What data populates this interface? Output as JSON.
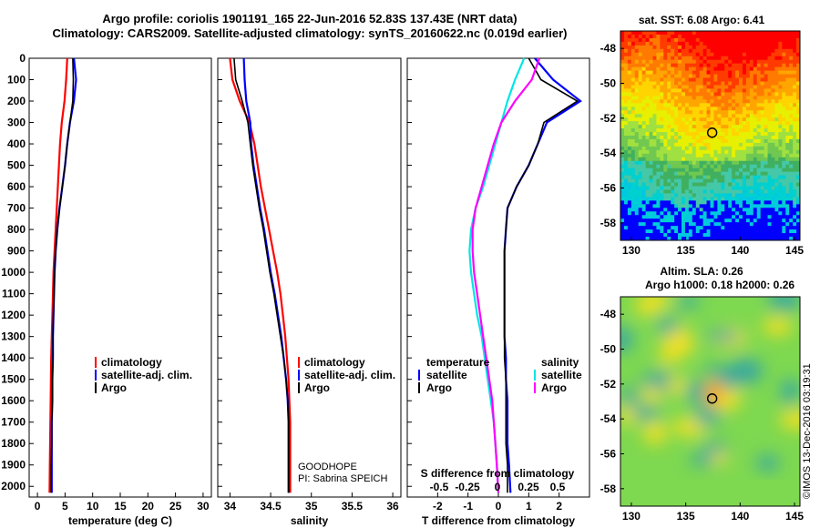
{
  "header": {
    "line1": "Argo profile: coriolis 1901191_165 22-Jun-2016 52.83S 137.43E (NRT data)",
    "line2": "Climatology: CARS2009. Satellite-adjusted climatology: synTS_20160622.nc (0.019d earlier)"
  },
  "colors": {
    "climatology": "#ff0000",
    "satellite": "#0000ff",
    "argo": "#000000",
    "s_satellite": "#00e6e6",
    "s_climatology": "#ff00ff"
  },
  "chart_data": [
    {
      "type": "line",
      "panel": "temperature",
      "xlabel": "temperature (deg C)",
      "ylabel": "",
      "xlim": [
        -1.5,
        31.5
      ],
      "ylim": [
        2050,
        0
      ],
      "xticks": [
        0,
        5,
        10,
        15,
        20,
        25,
        30
      ],
      "yticks": [
        0,
        100,
        200,
        300,
        400,
        500,
        600,
        700,
        800,
        900,
        1000,
        1100,
        1200,
        1300,
        1400,
        1500,
        1600,
        1700,
        1800,
        1900,
        2000
      ],
      "legend": [
        "climatology",
        "satellite-adj. clim.",
        "Argo"
      ],
      "series": [
        {
          "name": "climatology",
          "color": "climatology",
          "x": [
            5.4,
            5.2,
            4.9,
            4.4,
            4.1,
            3.9,
            3.7,
            3.5,
            3.3,
            3.1,
            2.9,
            2.8,
            2.7,
            2.6,
            2.5,
            2.45,
            2.4,
            2.35,
            2.3,
            2.25,
            2.2
          ],
          "y": [
            0,
            100,
            200,
            300,
            400,
            500,
            600,
            700,
            800,
            900,
            1000,
            1100,
            1200,
            1300,
            1400,
            1500,
            1600,
            1700,
            1800,
            1900,
            2030
          ]
        },
        {
          "name": "satellite-adj. clim.",
          "color": "satellite",
          "x": [
            6.6,
            7.0,
            6.6,
            5.9,
            5.4,
            5.0,
            4.5,
            4.0,
            3.6,
            3.3,
            3.1,
            3.0,
            2.9,
            2.8,
            2.8,
            2.7,
            2.7,
            2.6,
            2.6,
            2.6,
            2.6
          ],
          "y": [
            0,
            100,
            200,
            300,
            400,
            500,
            600,
            700,
            800,
            900,
            1000,
            1100,
            1200,
            1300,
            1400,
            1500,
            1600,
            1700,
            1800,
            1900,
            2030
          ]
        },
        {
          "name": "Argo",
          "color": "argo",
          "x": [
            6.4,
            6.5,
            6.4,
            5.9,
            5.4,
            5.0,
            4.5,
            4.0,
            3.6,
            3.3,
            3.1,
            3.0,
            2.9,
            2.8,
            2.8,
            2.7,
            2.7,
            2.6,
            2.6,
            2.5,
            2.5
          ],
          "y": [
            0,
            100,
            200,
            300,
            400,
            500,
            600,
            700,
            800,
            900,
            1000,
            1100,
            1200,
            1300,
            1400,
            1500,
            1600,
            1700,
            1800,
            1900,
            2030
          ]
        }
      ]
    },
    {
      "type": "line",
      "panel": "salinity",
      "xlabel": "salinity",
      "ylabel": "",
      "xlim": [
        33.85,
        36.1
      ],
      "ylim": [
        2050,
        0
      ],
      "xticks": [
        34,
        34.5,
        35,
        35.5,
        36
      ],
      "xticklabels": [
        "34",
        "34.5",
        "35",
        "35.5",
        "36"
      ],
      "legend": [
        "climatology",
        "satellite-adj. clim.",
        "Argo"
      ],
      "annotations": [
        "GOODHOPE",
        "PI: Sabrina SPEICH"
      ],
      "series": [
        {
          "name": "climatology",
          "color": "climatology",
          "x": [
            34.0,
            34.03,
            34.12,
            34.24,
            34.3,
            34.34,
            34.38,
            34.43,
            34.48,
            34.53,
            34.58,
            34.62,
            34.65,
            34.68,
            34.7,
            34.72,
            34.73,
            34.74,
            34.74,
            34.74,
            34.74
          ],
          "y": [
            0,
            100,
            200,
            300,
            400,
            500,
            600,
            700,
            800,
            900,
            1000,
            1100,
            1200,
            1300,
            1400,
            1500,
            1600,
            1700,
            1800,
            1900,
            2030
          ]
        },
        {
          "name": "satellite-adj. clim.",
          "color": "satellite",
          "x": [
            34.17,
            34.18,
            34.2,
            34.25,
            34.26,
            34.29,
            34.33,
            34.37,
            34.42,
            34.46,
            34.5,
            34.55,
            34.59,
            34.63,
            34.66,
            34.69,
            34.71,
            34.72,
            34.72,
            34.72,
            34.72
          ],
          "y": [
            0,
            100,
            200,
            300,
            400,
            500,
            600,
            700,
            800,
            900,
            1000,
            1100,
            1200,
            1300,
            1400,
            1500,
            1600,
            1700,
            1800,
            1900,
            2030
          ]
        },
        {
          "name": "Argo",
          "color": "argo",
          "x": [
            34.05,
            34.07,
            34.15,
            34.22,
            34.25,
            34.28,
            34.32,
            34.36,
            34.41,
            34.45,
            34.49,
            34.54,
            34.58,
            34.62,
            34.66,
            34.69,
            34.71,
            34.72,
            34.72,
            34.72,
            34.72
          ],
          "y": [
            0,
            100,
            200,
            300,
            400,
            500,
            600,
            700,
            800,
            900,
            1000,
            1100,
            1200,
            1300,
            1400,
            1500,
            1600,
            1700,
            1800,
            1900,
            2030
          ]
        }
      ]
    },
    {
      "type": "line",
      "panel": "difference",
      "xlabel": "T difference from climatology",
      "ylabel": "",
      "xlim": [
        -3,
        3
      ],
      "ylim": [
        2050,
        0
      ],
      "xticks": [
        -2,
        -1,
        0,
        1,
        2
      ],
      "xticklabels": [
        "-2",
        "-1",
        "0",
        "1",
        "2"
      ],
      "secondary_axis": {
        "label": "S difference from climatology",
        "ticklabels": [
          "-0.5",
          "-0.25",
          "0",
          "0.25",
          "0.5"
        ]
      },
      "legend_left": {
        "title": "temperature",
        "entries": [
          "satellite",
          "Argo"
        ]
      },
      "legend_right": {
        "title": "salinity",
        "entries": [
          "satellite",
          "Argo"
        ]
      },
      "series": [
        {
          "name": "temperature satellite",
          "color": "satellite",
          "x": [
            1.2,
            1.8,
            2.7,
            1.6,
            1.3,
            1.0,
            0.6,
            0.3,
            0.25,
            0.2,
            0.2,
            0.2,
            0.2,
            0.2,
            0.25,
            0.25,
            0.3,
            0.3,
            0.3,
            0.35,
            0.4
          ],
          "y": [
            0,
            100,
            200,
            300,
            400,
            500,
            600,
            700,
            800,
            900,
            1000,
            1100,
            1200,
            1300,
            1400,
            1500,
            1600,
            1700,
            1800,
            1900,
            2030
          ]
        },
        {
          "name": "temperature Argo",
          "color": "argo",
          "x": [
            1.0,
            1.4,
            2.6,
            1.5,
            1.3,
            1.0,
            0.6,
            0.3,
            0.25,
            0.2,
            0.2,
            0.2,
            0.2,
            0.2,
            0.2,
            0.25,
            0.25,
            0.25,
            0.25,
            0.3,
            0.3
          ],
          "y": [
            0,
            100,
            200,
            300,
            400,
            500,
            600,
            700,
            800,
            900,
            1000,
            1100,
            1200,
            1300,
            1400,
            1500,
            1600,
            1700,
            1800,
            1900,
            2030
          ]
        },
        {
          "name": "salinity satellite",
          "color": "s_satellite",
          "x": [
            0.85,
            0.55,
            0.3,
            0.1,
            -0.1,
            -0.3,
            -0.5,
            -0.75,
            -0.9,
            -0.95,
            -0.9,
            -0.8,
            -0.7,
            -0.55,
            -0.45,
            -0.35,
            -0.25,
            -0.15,
            -0.1,
            -0.05,
            0.0
          ],
          "y": [
            0,
            100,
            200,
            300,
            400,
            500,
            600,
            700,
            800,
            900,
            1000,
            1100,
            1200,
            1300,
            1400,
            1500,
            1600,
            1700,
            1800,
            1900,
            2030
          ]
        },
        {
          "name": "salinity Argo",
          "color": "s_climatology",
          "x": [
            1.35,
            1.1,
            0.55,
            0.1,
            -0.15,
            -0.35,
            -0.55,
            -0.75,
            -0.85,
            -0.85,
            -0.8,
            -0.7,
            -0.6,
            -0.5,
            -0.4,
            -0.3,
            -0.2,
            -0.15,
            -0.1,
            -0.05,
            0.0
          ],
          "y": [
            0,
            100,
            200,
            300,
            400,
            500,
            600,
            700,
            800,
            900,
            1000,
            1100,
            1200,
            1300,
            1400,
            1500,
            1600,
            1700,
            1800,
            1900,
            2030
          ]
        }
      ]
    },
    {
      "type": "heatmap",
      "panel": "sst_map",
      "title": "sat. SST: 6.08 Argo: 6.41",
      "xlim": [
        129,
        145.5
      ],
      "ylim": [
        -59,
        -47
      ],
      "xticks": [
        130,
        135,
        140,
        145
      ],
      "yticks": [
        -48,
        -50,
        -52,
        -54,
        -56,
        -58
      ],
      "marker": {
        "lon": 137.43,
        "lat": -52.83
      }
    },
    {
      "type": "heatmap",
      "panel": "sla_map",
      "title": "Altim. SLA: 0.26",
      "subtitle": "Argo h1000: 0.18 h2000: 0.26",
      "xlim": [
        129,
        145.5
      ],
      "ylim": [
        -59,
        -47
      ],
      "xticks": [
        130,
        135,
        140,
        145
      ],
      "yticks": [
        -48,
        -50,
        -52,
        -54,
        -56,
        -58
      ],
      "marker": {
        "lon": 137.43,
        "lat": -52.83
      }
    }
  ],
  "credit": "©IMOS 13-Dec-2016 03:19:31"
}
